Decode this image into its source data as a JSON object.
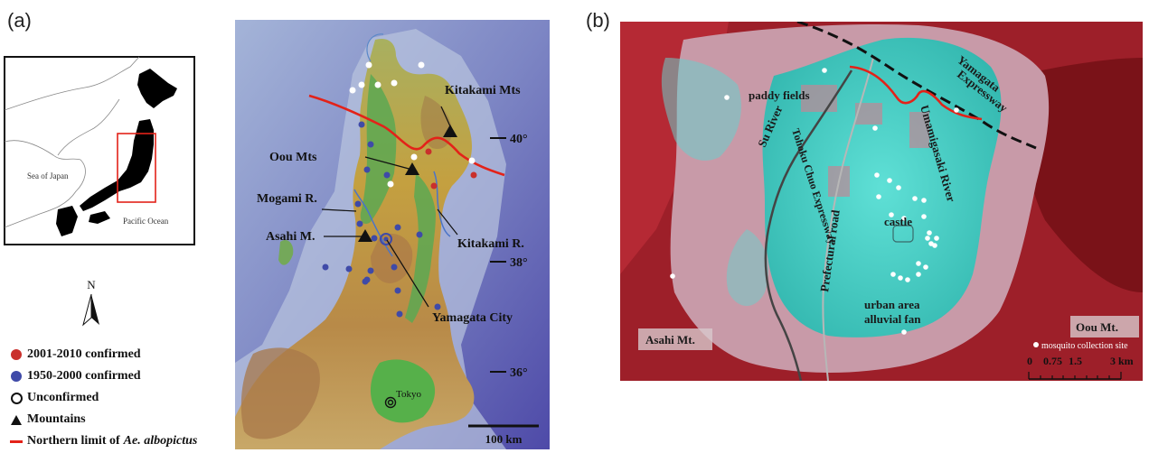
{
  "panel_a": {
    "label": "(a)",
    "inset": {
      "sea_of_japan": "Sea of Japan",
      "pacific_ocean": "Pacific Ocean"
    },
    "north_arrow": "N",
    "map_labels": {
      "kitakami_mts": "Kitakami Mts",
      "oou_mts": "Oou Mts",
      "mogami_r": "Mogami R.",
      "asahi_m": "Asahi M.",
      "kitakami_r": "Kitakami R.",
      "yamagata_city": "Yamagata City",
      "tokyo": "Tokyo"
    },
    "latitudes": [
      "40°",
      "38°",
      "36°"
    ],
    "scale_bar": "100 km",
    "legend": {
      "confirmed_2001_2010": "2001-2010  confirmed",
      "confirmed_1950_2000": "1950-2000  confirmed",
      "unconfirmed": "Unconfirmed",
      "mountains": "Mountains",
      "northern_limit_prefix": "Northern limit of ",
      "northern_limit_species": "Ae. albopictus"
    },
    "colors": {
      "confirmed_2001_2010": "#c9302c",
      "confirmed_1950_2000": "#3f4aa8",
      "northern_limit": "#e32219"
    }
  },
  "panel_b": {
    "label": "(b)",
    "labels": {
      "paddy_fields": "paddy fields",
      "su_river": "Su River",
      "tohoku_chuo_expressway": "Tohoku Chuo Expressway",
      "prefectural_road": "Prefectural road",
      "yamagata_expressway_1": "Yamagata",
      "yamagata_expressway_2": "Expressway",
      "umamigasaki_river": "Umamigasaki River",
      "castle": "castle",
      "urban_area": "urban area",
      "alluvial_fan": "alluvial fan",
      "asahi_mt": "Asahi Mt.",
      "oou_mt": "Oou Mt.",
      "collection_site": "mosquito collection site"
    },
    "scale": {
      "t0": "0",
      "t1": "0.75",
      "t2": "1.5",
      "t3": "3 km"
    }
  }
}
